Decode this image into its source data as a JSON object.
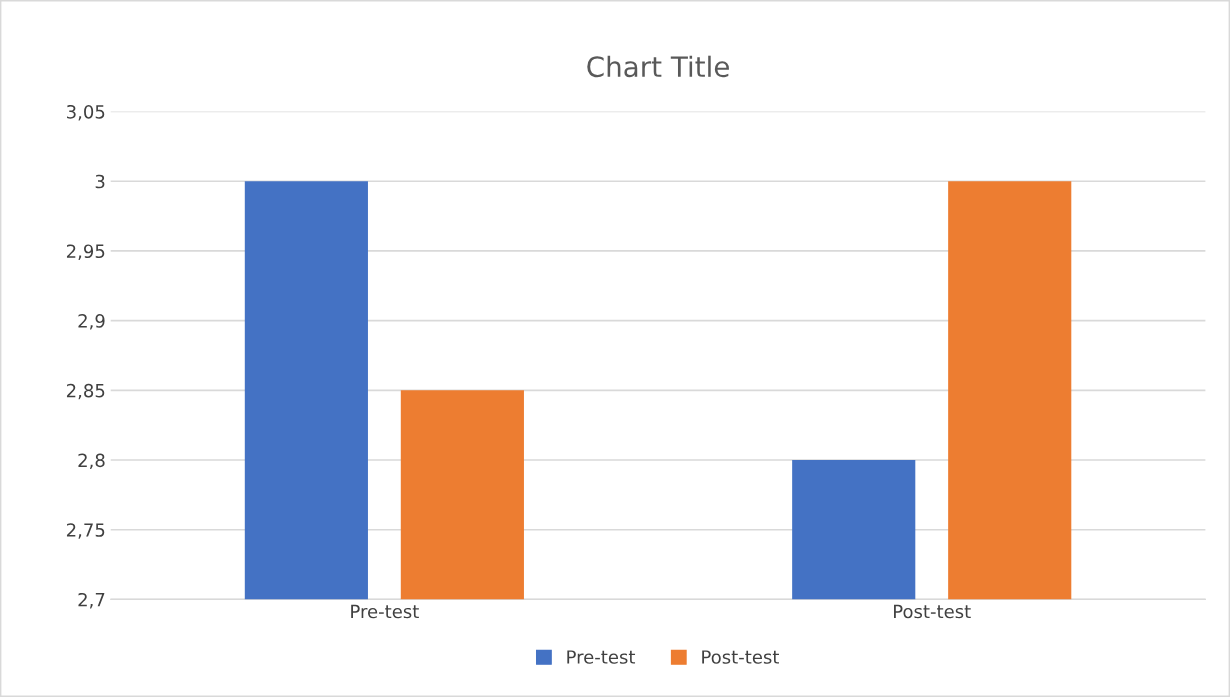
{
  "chart_data": {
    "type": "bar",
    "title": "Chart Title",
    "categories": [
      "Pre-test",
      "Post-test"
    ],
    "series": [
      {
        "name": "Pre-test",
        "color": "#4472c4",
        "values": [
          3,
          2.8
        ]
      },
      {
        "name": "Post-test",
        "color": "#ed7d31",
        "values": [
          2.85,
          3
        ]
      }
    ],
    "ylim": [
      2.7,
      3.05
    ],
    "yticks": [
      {
        "value": 2.7,
        "label": "2,7"
      },
      {
        "value": 2.75,
        "label": "2,75"
      },
      {
        "value": 2.8,
        "label": "2,8"
      },
      {
        "value": 2.85,
        "label": "2,85"
      },
      {
        "value": 2.9,
        "label": "2,9"
      },
      {
        "value": 2.95,
        "label": "2,95"
      },
      {
        "value": 3,
        "label": "3"
      },
      {
        "value": 3.05,
        "label": "3,05"
      }
    ],
    "grid": "y",
    "legend": "bottom"
  }
}
